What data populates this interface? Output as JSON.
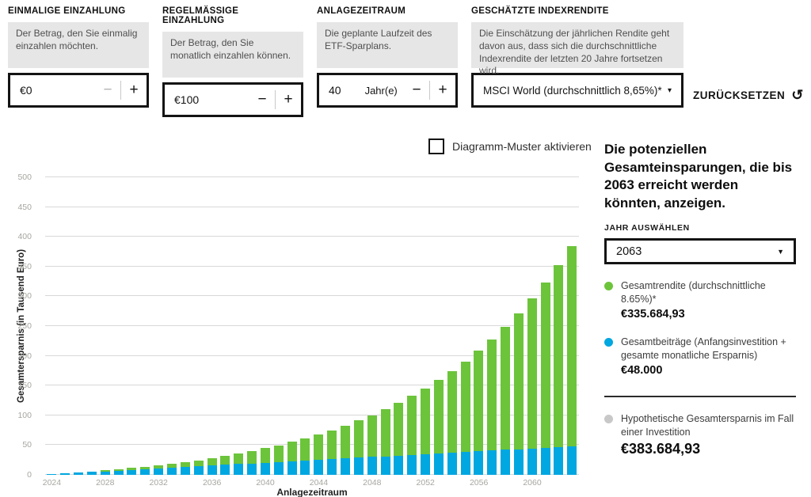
{
  "controls": {
    "stepper_minus": "−",
    "stepper_plus": "+",
    "one_time": {
      "label": "EINMALIGE EINZAHLUNG",
      "description": "Der Betrag, den Sie einmalig einzahlen möchten.",
      "value": "€0"
    },
    "recurring": {
      "label": "REGELMÄSSIGE EINZAHLUNG",
      "description": "Der Betrag, den Sie monatlich einzahlen können.",
      "value": "€100"
    },
    "period": {
      "label": "ANLAGEZEITRAUM",
      "description": "Die geplante Laufzeit des ETF-Sparplans.",
      "value": "40",
      "unit": "Jahr(e)"
    },
    "index_return": {
      "label": "GESCHÄTZTE INDEXRENDITE",
      "description": "Die Einschätzung der jährlichen Rendite geht davon aus, dass sich die durchschnittliche Indexrendite der letzten 20 Jahre fortsetzen wird.",
      "value": "MSCI World (durchschnittlich 8,65%)*"
    },
    "reset_label": "ZURÜCKSETZEN"
  },
  "icons": {
    "reset": "↺",
    "caret_small": "▾",
    "caret_down": "▼"
  },
  "pattern_toggle": {
    "label": "Diagramm-Muster aktivieren",
    "checked": false
  },
  "side_panel": {
    "heading": "Die potenziellen Gesamteinsparungen, die bis 2063 erreicht werden könnten, anzeigen.",
    "year_select_label": "JAHR AUSWÄHLEN",
    "year_value": "2063",
    "legend": [
      {
        "label": "Gesamtrendite (durchschnittliche 8.65%)*",
        "value": "€335.684,93",
        "color": "#6cc43a"
      },
      {
        "label": "Gesamtbeiträge (Anfangsinvestition + gesamte monatliche Ersparnis)",
        "value": "€48.000",
        "color": "#00a7e0"
      },
      {
        "label": "Hypothetische Gesamtersparnis im Fall einer Investition",
        "value": "€383.684,93",
        "color": "#c8c8c8"
      }
    ]
  },
  "chart_data": {
    "type": "bar",
    "stacked": true,
    "xlabel": "Anlagezeitraum",
    "ylabel": "Gesamtersparnis (in Tausend Euro)",
    "ylim": [
      0,
      500
    ],
    "y_ticks": [
      0,
      50,
      100,
      150,
      200,
      250,
      300,
      350,
      400,
      450,
      500
    ],
    "x_tick_labels": [
      "2024",
      "2028",
      "2032",
      "2036",
      "2040",
      "2044",
      "2048",
      "2052",
      "2056",
      "2060"
    ],
    "grid": true,
    "legend_position": "right-panel",
    "categories": [
      2024,
      2025,
      2026,
      2027,
      2028,
      2029,
      2030,
      2031,
      2032,
      2033,
      2034,
      2035,
      2036,
      2037,
      2038,
      2039,
      2040,
      2041,
      2042,
      2043,
      2044,
      2045,
      2046,
      2047,
      2048,
      2049,
      2050,
      2051,
      2052,
      2053,
      2054,
      2055,
      2056,
      2057,
      2058,
      2059,
      2060,
      2061,
      2062,
      2063
    ],
    "series": [
      {
        "name": "Gesamtbeiträge",
        "color": "#00a7e0",
        "values": [
          1.2,
          2.4,
          3.6,
          4.8,
          6,
          7.2,
          8.4,
          9.6,
          10.8,
          12,
          13.2,
          14.4,
          15.6,
          16.8,
          18,
          19.2,
          20.4,
          21.6,
          22.8,
          24,
          25.2,
          26.4,
          27.6,
          28.8,
          30,
          31.2,
          32.4,
          33.6,
          34.8,
          36,
          37.2,
          38.4,
          39.6,
          40.8,
          42,
          43.2,
          44.4,
          45.6,
          46.8,
          48
        ]
      },
      {
        "name": "Gesamtrendite",
        "color": "#6cc43a",
        "values": [
          0,
          0.2,
          0.5,
          0.9,
          1.4,
          2.1,
          3,
          4,
          5.2,
          6.6,
          8.3,
          10.2,
          12.4,
          14.8,
          17.6,
          20.7,
          24.2,
          28.2,
          32.5,
          37.3,
          42.7,
          48.6,
          55.1,
          62.4,
          70.3,
          79,
          88.6,
          99.1,
          110.6,
          123.2,
          137.1,
          152.2,
          168.7,
          186.8,
          206.5,
          228.1,
          251.6,
          277.2,
          305.2,
          335.7
        ]
      }
    ]
  }
}
